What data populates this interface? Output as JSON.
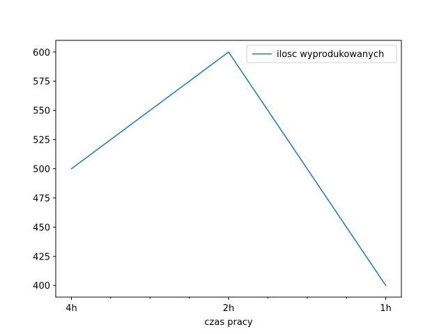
{
  "chart_data": {
    "type": "line",
    "title": "",
    "xlabel": "czas pracy",
    "ylabel": "",
    "categories": [
      "4h",
      "2h",
      "1h"
    ],
    "series": [
      {
        "name": "ilosc wyprodukowanych",
        "values": [
          500,
          600,
          400
        ],
        "color": "#1f77b4"
      }
    ],
    "ylim": [
      390,
      610
    ],
    "yticks": [
      400,
      425,
      450,
      475,
      500,
      525,
      550,
      575,
      600
    ],
    "x_minor_ticks_between": 3,
    "grid": false,
    "legend_position": "top-right"
  }
}
